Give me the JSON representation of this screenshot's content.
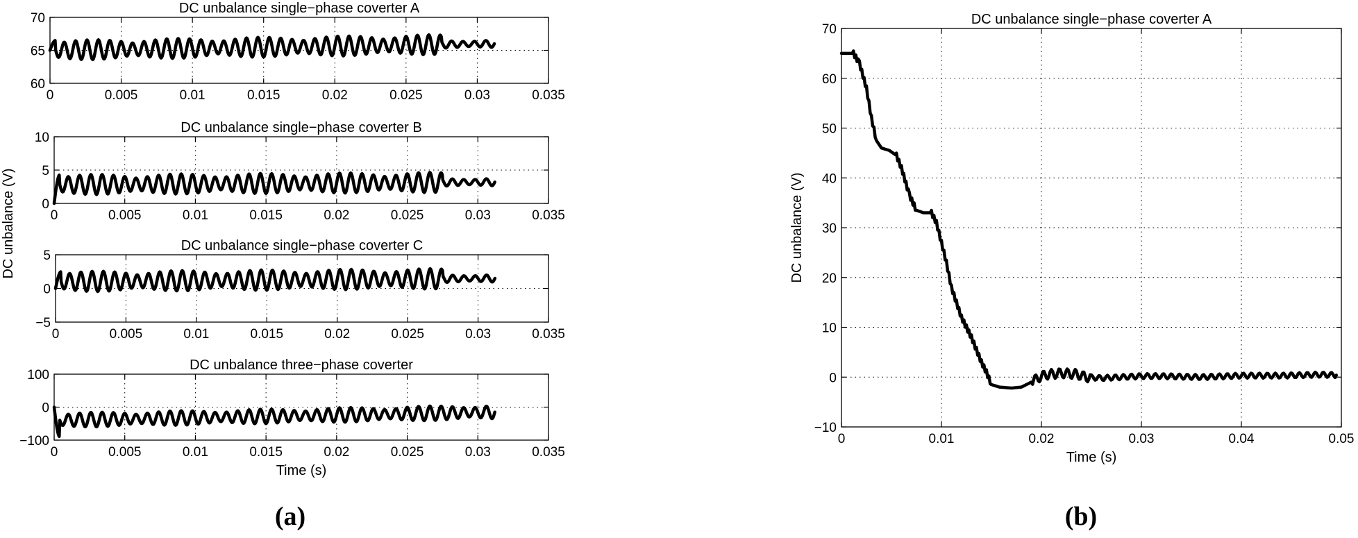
{
  "chart_data": [
    {
      "type": "line",
      "title": "DC unbalance single−phase coverter A",
      "xlabel": "",
      "ylabel": "",
      "xlim": [
        0,
        0.035
      ],
      "ylim": [
        60,
        70
      ],
      "xticks": [
        0,
        0.005,
        0.01,
        0.015,
        0.02,
        0.025,
        0.03,
        0.035
      ],
      "xtick_labels": [
        "0",
        "0.005",
        "0.01",
        "0.015",
        "0.02",
        "0.025",
        "0.03",
        "0.035"
      ],
      "yticks": [
        60,
        65,
        70
      ],
      "ytick_labels": [
        "60",
        "65",
        "70"
      ],
      "grid": true,
      "series": [
        {
          "x_range": [
            0,
            0.0312
          ],
          "start": 65,
          "baseline": 65,
          "drift": 1,
          "amplitude": 1.5,
          "period": 0.0008,
          "tail_amplitude": 0.6
        }
      ]
    },
    {
      "type": "line",
      "title": "DC unbalance single−phase coverter B",
      "xlabel": "",
      "ylabel": "",
      "xlim": [
        0,
        0.035
      ],
      "ylim": [
        0,
        10
      ],
      "xticks": [
        0,
        0.005,
        0.01,
        0.015,
        0.02,
        0.025,
        0.03,
        0.035
      ],
      "xtick_labels": [
        "0",
        "0.005",
        "0.01",
        "0.015",
        "0.02",
        "0.025",
        "0.03",
        "0.035"
      ],
      "yticks": [
        0,
        5,
        10
      ],
      "ytick_labels": [
        "0",
        "5",
        "10"
      ],
      "grid": true,
      "series": [
        {
          "x_range": [
            0,
            0.0312
          ],
          "start": 0,
          "baseline": 2.8,
          "drift": 0.4,
          "amplitude": 1.5,
          "period": 0.0008,
          "tail_amplitude": 0.6
        }
      ]
    },
    {
      "type": "line",
      "title": "DC unbalance single−phase coverter C",
      "xlabel": "",
      "ylabel": "",
      "xlim": [
        0,
        0.035
      ],
      "ylim": [
        -5,
        5
      ],
      "xticks": [
        0,
        0.005,
        0.01,
        0.015,
        0.02,
        0.025,
        0.03,
        0.035
      ],
      "xtick_labels": [
        "0",
        "0.005",
        "0.01",
        "0.015",
        "0.02",
        "0.025",
        "0.03",
        "0.035"
      ],
      "yticks": [
        -5,
        0,
        5
      ],
      "ytick_labels": [
        "−5",
        "0",
        "5"
      ],
      "grid": true,
      "series": [
        {
          "x_range": [
            0,
            0.0312
          ],
          "start": 0,
          "baseline": 1,
          "drift": 0.5,
          "amplitude": 1.5,
          "period": 0.0008,
          "tail_amplitude": 0.6
        }
      ]
    },
    {
      "type": "line",
      "title": "DC unbalance three−phase coverter",
      "xlabel": "Time (s)",
      "ylabel": "",
      "xlim": [
        0,
        0.035
      ],
      "ylim": [
        -100,
        100
      ],
      "xticks": [
        0,
        0.005,
        0.01,
        0.015,
        0.02,
        0.025,
        0.03,
        0.035
      ],
      "xtick_labels": [
        "0",
        "0.005",
        "0.01",
        "0.015",
        "0.02",
        "0.025",
        "0.03",
        "0.035"
      ],
      "yticks": [
        -100,
        0,
        100
      ],
      "ytick_labels": [
        "−100",
        "0",
        "100"
      ],
      "grid": true,
      "series": [
        {
          "x_range": [
            0,
            0.0312
          ],
          "start": 0,
          "baseline": -40,
          "drift": 25,
          "amplitude": 22,
          "period": 0.0008,
          "dip": -90
        }
      ]
    },
    {
      "type": "line",
      "title": "DC unbalance single−phase coverter A",
      "xlabel": "Time (s)",
      "ylabel": "DC unbalance (V)",
      "xlim": [
        0,
        0.05
      ],
      "ylim": [
        -10,
        70
      ],
      "xticks": [
        0,
        0.01,
        0.02,
        0.03,
        0.04,
        0.05
      ],
      "xtick_labels": [
        "0",
        "0.01",
        "0.02",
        "0.03",
        "0.04",
        "0.05"
      ],
      "yticks": [
        -10,
        0,
        10,
        20,
        30,
        40,
        50,
        60,
        70
      ],
      "ytick_labels": [
        "−10",
        "0",
        "10",
        "20",
        "30",
        "40",
        "50",
        "60",
        "70"
      ],
      "grid": true,
      "series": [
        {
          "x": [
            0,
            0.0012,
            0.0018,
            0.0025,
            0.003,
            0.0035,
            0.004,
            0.0048,
            0.0055,
            0.006,
            0.0068,
            0.0075,
            0.0082,
            0.009,
            0.0095,
            0.01,
            0.0105,
            0.011,
            0.0115,
            0.012,
            0.0125,
            0.013,
            0.0135,
            0.014,
            0.0145,
            0.015,
            0.0158,
            0.017,
            0.018,
            0.019,
            0.0198,
            0.0205,
            0.022,
            0.0235,
            0.0245,
            0.026,
            0.03,
            0.032,
            0.036,
            0.04,
            0.044,
            0.048,
            0.0495
          ],
          "y": [
            65,
            65,
            63,
            58,
            52,
            47.5,
            46,
            45.5,
            44.5,
            42,
            36.5,
            33.5,
            33,
            33,
            31,
            27,
            23,
            18,
            15,
            12,
            10,
            8,
            5.5,
            3,
            1,
            -1.5,
            -2,
            -2.2,
            -2,
            -1,
            0,
            0.5,
            0.8,
            0.6,
            0,
            -0.2,
            0.2,
            0.2,
            0,
            0.3,
            0.3,
            0.5,
            0.4
          ],
          "jitter": 0.8
        }
      ]
    }
  ],
  "figure": {
    "shared_ylabel": "DC unbalance (V)",
    "panel_a": "(a)",
    "panel_b": "(b)"
  }
}
